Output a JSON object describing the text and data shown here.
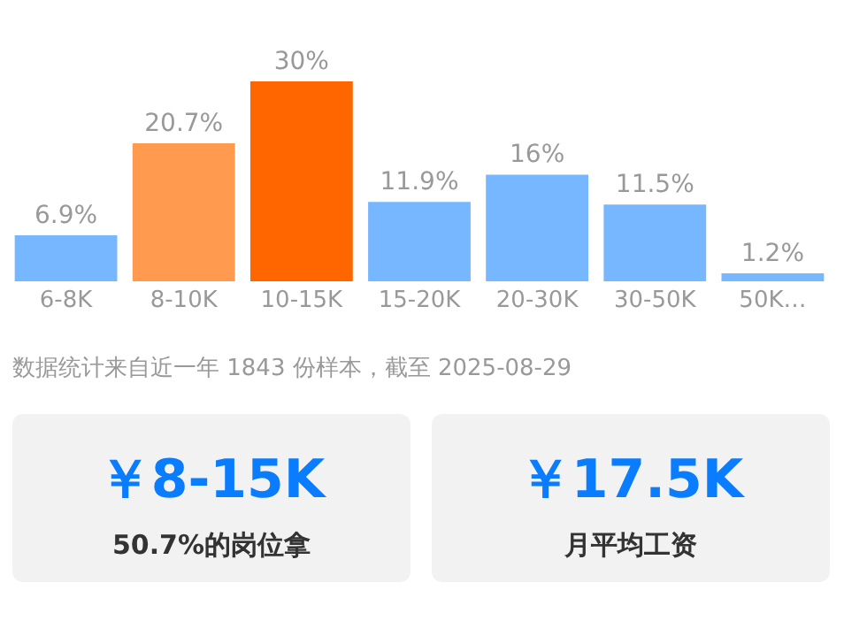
{
  "chart_data": [
    {
      "type": "bar",
      "categories": [
        "6-8K",
        "8-10K",
        "10-15K",
        "15-20K",
        "20-30K",
        "30-50K",
        "50K…"
      ],
      "values": [
        6.9,
        20.7,
        30,
        11.9,
        16,
        11.5,
        1.2
      ],
      "value_labels": [
        "6.9%",
        "20.7%",
        "30%",
        "11.9%",
        "16%",
        "11.5%",
        "1.2%"
      ],
      "colors": [
        "#77b7ff",
        "#ff9a4f",
        "#ff6600",
        "#77b7ff",
        "#77b7ff",
        "#77b7ff",
        "#77b7ff"
      ],
      "tick_labels": "x",
      "grid": false,
      "legend": false,
      "annotations": [
        "数据统计来自近一年 1843 份样本，截至 2025-08-29"
      ]
    },
    {
      "type": "other",
      "title": "￥8-15K",
      "subtitle": "50.7%的岗位拿"
    },
    {
      "type": "other",
      "title": "￥17.5K",
      "subtitle": "月平均工资"
    }
  ]
}
